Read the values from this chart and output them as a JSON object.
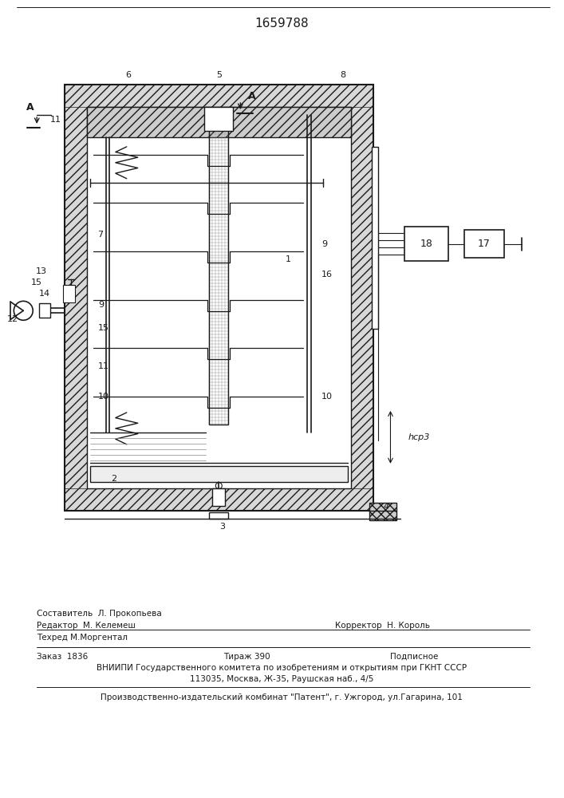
{
  "title_number": "1659788",
  "bg": "#ffffff",
  "dc": "#1a1a1a",
  "fig_w": 7.07,
  "fig_h": 10.0,
  "dpi": 100,
  "footer": {
    "editor": "Редактор  М. Келемеш",
    "compositor_label": "Составитель  Л. Прокопьева",
    "techred": "Техред М.Моргентал",
    "corrector": "Корректор  Н. Король",
    "zakaz": "Заказ  1836",
    "tirazh": "Тираж 390",
    "podpisnoe": "Подписное",
    "vnipi": "ВНИИПИ Государственного комитета по изобретениям и открытиям при ГКНТ СССР",
    "address": "113035, Москва, Ж-35, Раушская наб., 4/5",
    "patent": "Производственно-издательский комбинат \"Патент\", г. Ужгород, ул.Гагарина, 101"
  }
}
